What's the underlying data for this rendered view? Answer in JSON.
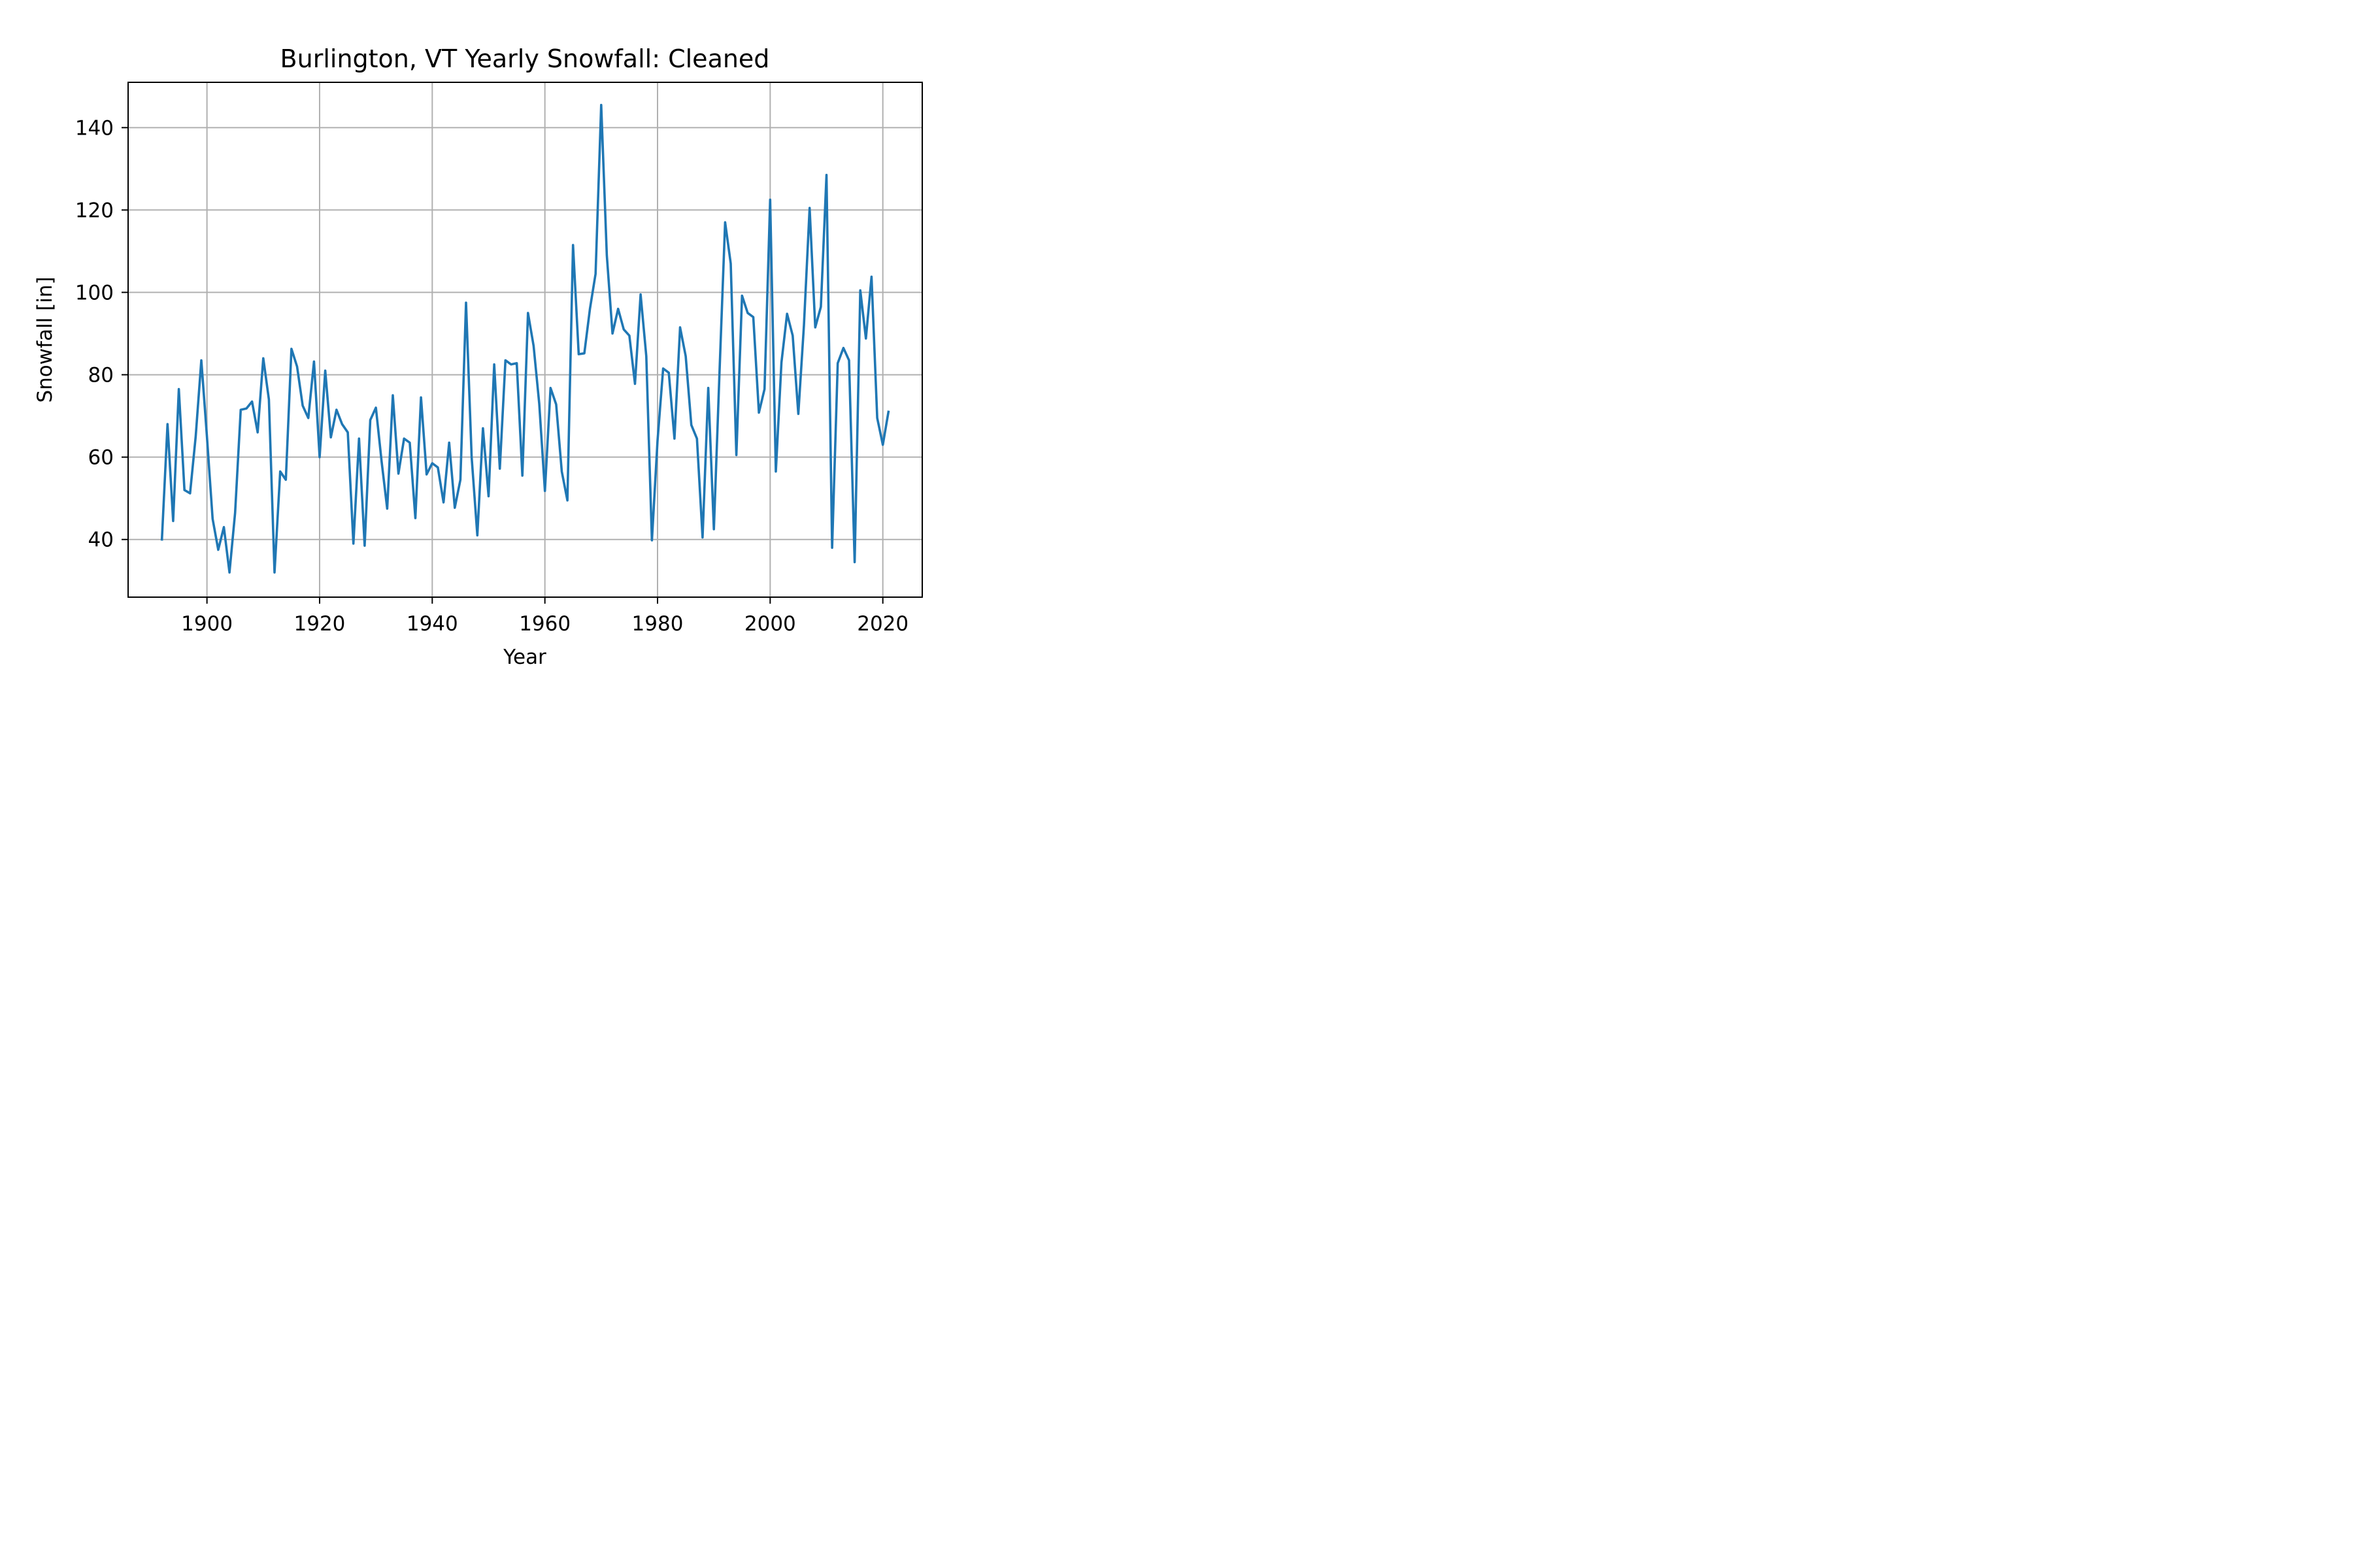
{
  "chart_data": {
    "type": "line",
    "title": "Burlington, VT Yearly Snowfall: Cleaned",
    "xlabel": "Year",
    "ylabel": "Snowfall [in]",
    "xlim": [
      1886,
      2027
    ],
    "ylim": [
      26,
      151
    ],
    "xticks": [
      1900,
      1920,
      1940,
      1960,
      1980,
      2000,
      2020
    ],
    "yticks": [
      40,
      60,
      80,
      100,
      120,
      140
    ],
    "grid": true,
    "line_color": "#1f77b4",
    "series": [
      {
        "x": [
          1892,
          1893,
          1894,
          1895,
          1896,
          1897,
          1898,
          1899,
          1900,
          1901,
          1902,
          1903,
          1904,
          1905,
          1906,
          1907,
          1908,
          1909,
          1910,
          1911,
          1912,
          1913,
          1914,
          1915,
          1916,
          1917,
          1918,
          1919,
          1920,
          1921,
          1922,
          1923,
          1924,
          1925,
          1926,
          1927,
          1928,
          1929,
          1930,
          1931,
          1932,
          1933,
          1934,
          1935,
          1936,
          1937,
          1938,
          1939,
          1940,
          1941,
          1942,
          1943,
          1944,
          1945,
          1946,
          1947,
          1948,
          1949,
          1950,
          1951,
          1952,
          1953,
          1954,
          1955,
          1956,
          1957,
          1958,
          1959,
          1960,
          1961,
          1962,
          1963,
          1964,
          1965,
          1966,
          1967,
          1968,
          1969,
          1970,
          1971,
          1972,
          1973,
          1974,
          1975,
          1976,
          1977,
          1978,
          1979,
          1980,
          1981,
          1982,
          1983,
          1984,
          1985,
          1986,
          1987,
          1988,
          1989,
          1990,
          1991,
          1992,
          1993,
          1994,
          1995,
          1996,
          1997,
          1998,
          1999,
          2000,
          2001,
          2002,
          2003,
          2004,
          2005,
          2006,
          2007,
          2008,
          2009,
          2010,
          2011,
          2012,
          2013,
          2014,
          2015,
          2016,
          2017,
          2018,
          2019,
          2020,
          2021
        ],
        "values": [
          40,
          68,
          44.5,
          76.5,
          52,
          51.2,
          65,
          83.5,
          65,
          45,
          37.5,
          43,
          32,
          46.5,
          71.5,
          71.8,
          73.5,
          66,
          84,
          74,
          32,
          56.5,
          54.5,
          86.3,
          82,
          72.5,
          69.5,
          83.2,
          60,
          81,
          64.8,
          71.5,
          68,
          66,
          39,
          64.5,
          38.5,
          69,
          72,
          59,
          47.5,
          75,
          56,
          64.5,
          63.5,
          45.2,
          74.5,
          55.8,
          58.5,
          57.5,
          49,
          63.5,
          47.7,
          54.5,
          97.5,
          60,
          41,
          67,
          50.5,
          82.5,
          57.2,
          83.5,
          82.5,
          82.8,
          55.5,
          95,
          87,
          73,
          51.8,
          76.8,
          72.8,
          56.5,
          49.5,
          111.5,
          85,
          85.2,
          96,
          104.5,
          145.5,
          109,
          90,
          96,
          91,
          89.5,
          77.8,
          99.5,
          84.5,
          39.8,
          64,
          81.5,
          80.5,
          64.5,
          91.5,
          84.5,
          67.8,
          64.5,
          40.5,
          76.8,
          42.5,
          80.5,
          117,
          107,
          60.5,
          99.2,
          95,
          94,
          70.8,
          76.5,
          122.5,
          56.5,
          83,
          94.8,
          89.5,
          70.5,
          92,
          120.5,
          91.5,
          96.5,
          128.5,
          38,
          82.8,
          86.5,
          83.5,
          34.5,
          100.5,
          88.8,
          103.8,
          69.5,
          63,
          71
        ]
      }
    ]
  }
}
